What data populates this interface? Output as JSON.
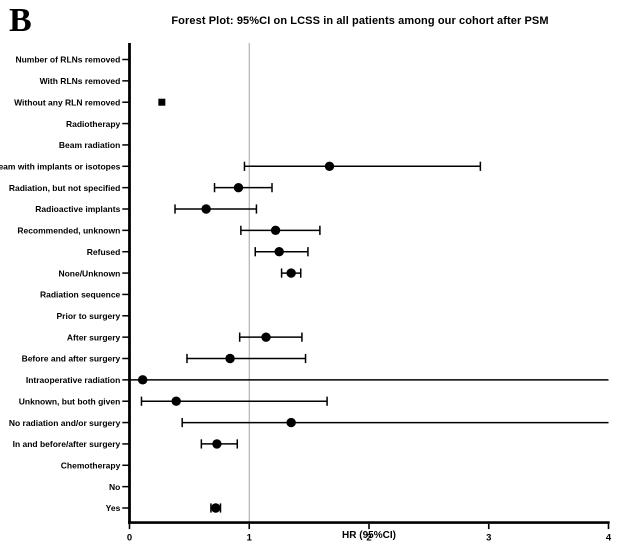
{
  "figure": {
    "panel_label": "B",
    "title": "Forest Plot: 95%CI on LCSS in all patients among our cohort after PSM",
    "xlabel": "HR (95%CI)"
  },
  "chart_data": {
    "type": "forest",
    "title": "Forest Plot: 95%CI on LCSS in all patients among our cohort after PSM",
    "xlabel": "HR (95%CI)",
    "xlim": [
      0,
      4
    ],
    "xticks": [
      0,
      1,
      2,
      3,
      4
    ],
    "grid": false,
    "reference_line_x": 1,
    "colors": {
      "axis": "#000000",
      "marker": "#000000",
      "reference_line": "#ababab"
    },
    "rows": [
      {
        "label": "Number of RLNs removed",
        "hr": null,
        "lo": null,
        "hi": null
      },
      {
        "label": "With RLNs removed",
        "hr": null,
        "lo": null,
        "hi": null
      },
      {
        "label": "Without any RLN removed",
        "hr": 0.27,
        "lo": 0.27,
        "hi": 0.27,
        "marker": "square"
      },
      {
        "label": "Radiotherapy",
        "hr": null,
        "lo": null,
        "hi": null
      },
      {
        "label": "Beam radiation",
        "hr": null,
        "lo": null,
        "hi": null
      },
      {
        "label": "Beam with implants or isotopes",
        "hr": 1.67,
        "lo": 0.96,
        "hi": 2.93
      },
      {
        "label": "Radiation, but not specified",
        "hr": 0.91,
        "lo": 0.71,
        "hi": 1.19
      },
      {
        "label": "Radioactive implants",
        "hr": 0.64,
        "lo": 0.38,
        "hi": 1.06
      },
      {
        "label": "Recommended, unknown",
        "hr": 1.22,
        "lo": 0.93,
        "hi": 1.59
      },
      {
        "label": "Refused",
        "hr": 1.25,
        "lo": 1.05,
        "hi": 1.49
      },
      {
        "label": "None/Unknown",
        "hr": 1.35,
        "lo": 1.27,
        "hi": 1.43
      },
      {
        "label": "Radiation sequence",
        "hr": null,
        "lo": null,
        "hi": null
      },
      {
        "label": "Prior to surgery",
        "hr": null,
        "lo": null,
        "hi": null
      },
      {
        "label": "After surgery",
        "hr": 1.14,
        "lo": 0.92,
        "hi": 1.44
      },
      {
        "label": "Before and after surgery",
        "hr": 0.84,
        "lo": 0.48,
        "hi": 1.47
      },
      {
        "label": "Intraoperative radiation",
        "hr": 0.11,
        "lo": 0.0,
        "hi": 4.0,
        "lo_truncated": true,
        "hi_truncated": true
      },
      {
        "label": "Unknown, but both given",
        "hr": 0.39,
        "lo": 0.1,
        "hi": 1.65
      },
      {
        "label": "No radiation and/or surgery",
        "hr": 1.35,
        "lo": 0.44,
        "hi": 4.0,
        "hi_truncated": true
      },
      {
        "label": "In and before/after surgery",
        "hr": 0.73,
        "lo": 0.6,
        "hi": 0.9
      },
      {
        "label": "Chemotherapy",
        "hr": null,
        "lo": null,
        "hi": null
      },
      {
        "label": "No",
        "hr": null,
        "lo": null,
        "hi": null
      },
      {
        "label": "Yes",
        "hr": 0.72,
        "lo": 0.68,
        "hi": 0.76
      }
    ]
  }
}
